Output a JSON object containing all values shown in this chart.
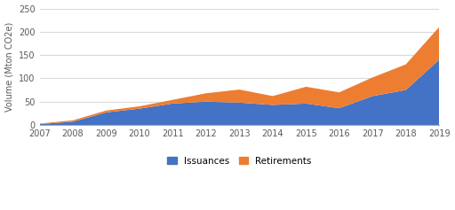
{
  "years": [
    2007,
    2008,
    2009,
    2010,
    2011,
    2012,
    2013,
    2014,
    2015,
    2016,
    2017,
    2018,
    2019
  ],
  "issuances": [
    2,
    7,
    27,
    35,
    46,
    50,
    48,
    43,
    46,
    36,
    62,
    75,
    140
  ],
  "retirements": [
    1,
    3,
    4,
    5,
    8,
    18,
    28,
    19,
    36,
    34,
    40,
    55,
    70
  ],
  "issuances_color": "#4472C4",
  "retirements_color": "#ED7D31",
  "ylabel": "Volume (Mton CO2e)",
  "ylim": [
    0,
    250
  ],
  "yticks": [
    0,
    50,
    100,
    150,
    200,
    250
  ],
  "background_color": "#ffffff",
  "grid_color": "#d9d9d9",
  "legend_labels": [
    "Issuances",
    "Retirements"
  ]
}
